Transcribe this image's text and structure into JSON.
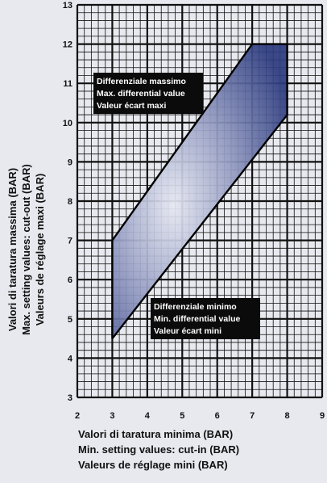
{
  "chart_data": {
    "type": "area",
    "xlim": [
      2,
      9
    ],
    "ylim": [
      3,
      13
    ],
    "x_ticks": [
      "2",
      "3",
      "4",
      "5",
      "6",
      "7",
      "8",
      "9"
    ],
    "y_ticks": [
      "3",
      "4",
      "5",
      "6",
      "7",
      "8",
      "9",
      "10",
      "11",
      "12",
      "13"
    ],
    "grid": true,
    "xlabel_lines": [
      "Valori di taratura minima (BAR)",
      "Min. setting values: cut-in (BAR)",
      "Valeurs de réglage mini (BAR)"
    ],
    "ylabel_lines": [
      "Valori di taratura massima (BAR)",
      "Max. setting values: cut-out (BAR)",
      "Valeurs de réglage maxi (BAR)"
    ],
    "region": {
      "x": [
        3,
        7,
        8,
        8,
        3
      ],
      "y": [
        7,
        12,
        12,
        10.2,
        4.5
      ]
    },
    "boundaries": [
      {
        "name": "Differenziale massimo",
        "x": [
          3,
          7
        ],
        "y": [
          7,
          12
        ]
      },
      {
        "name": "Differenziale minimo",
        "x": [
          3,
          8
        ],
        "y": [
          4.5,
          10.2
        ]
      }
    ],
    "annotations": {
      "max_lines": [
        "Differenziale massimo",
        "Max. differential value",
        "Valeur écart maxi"
      ],
      "min_lines": [
        "Differenziale minimo",
        "Min. differential value",
        "Valeur écart mini"
      ]
    },
    "colors": {
      "fill_dark": "#2b3a7e",
      "fill_light": "#e6e8f2",
      "grid": "#111111",
      "background": "#e7e9ee",
      "label_box": "#0b0b0b"
    }
  }
}
